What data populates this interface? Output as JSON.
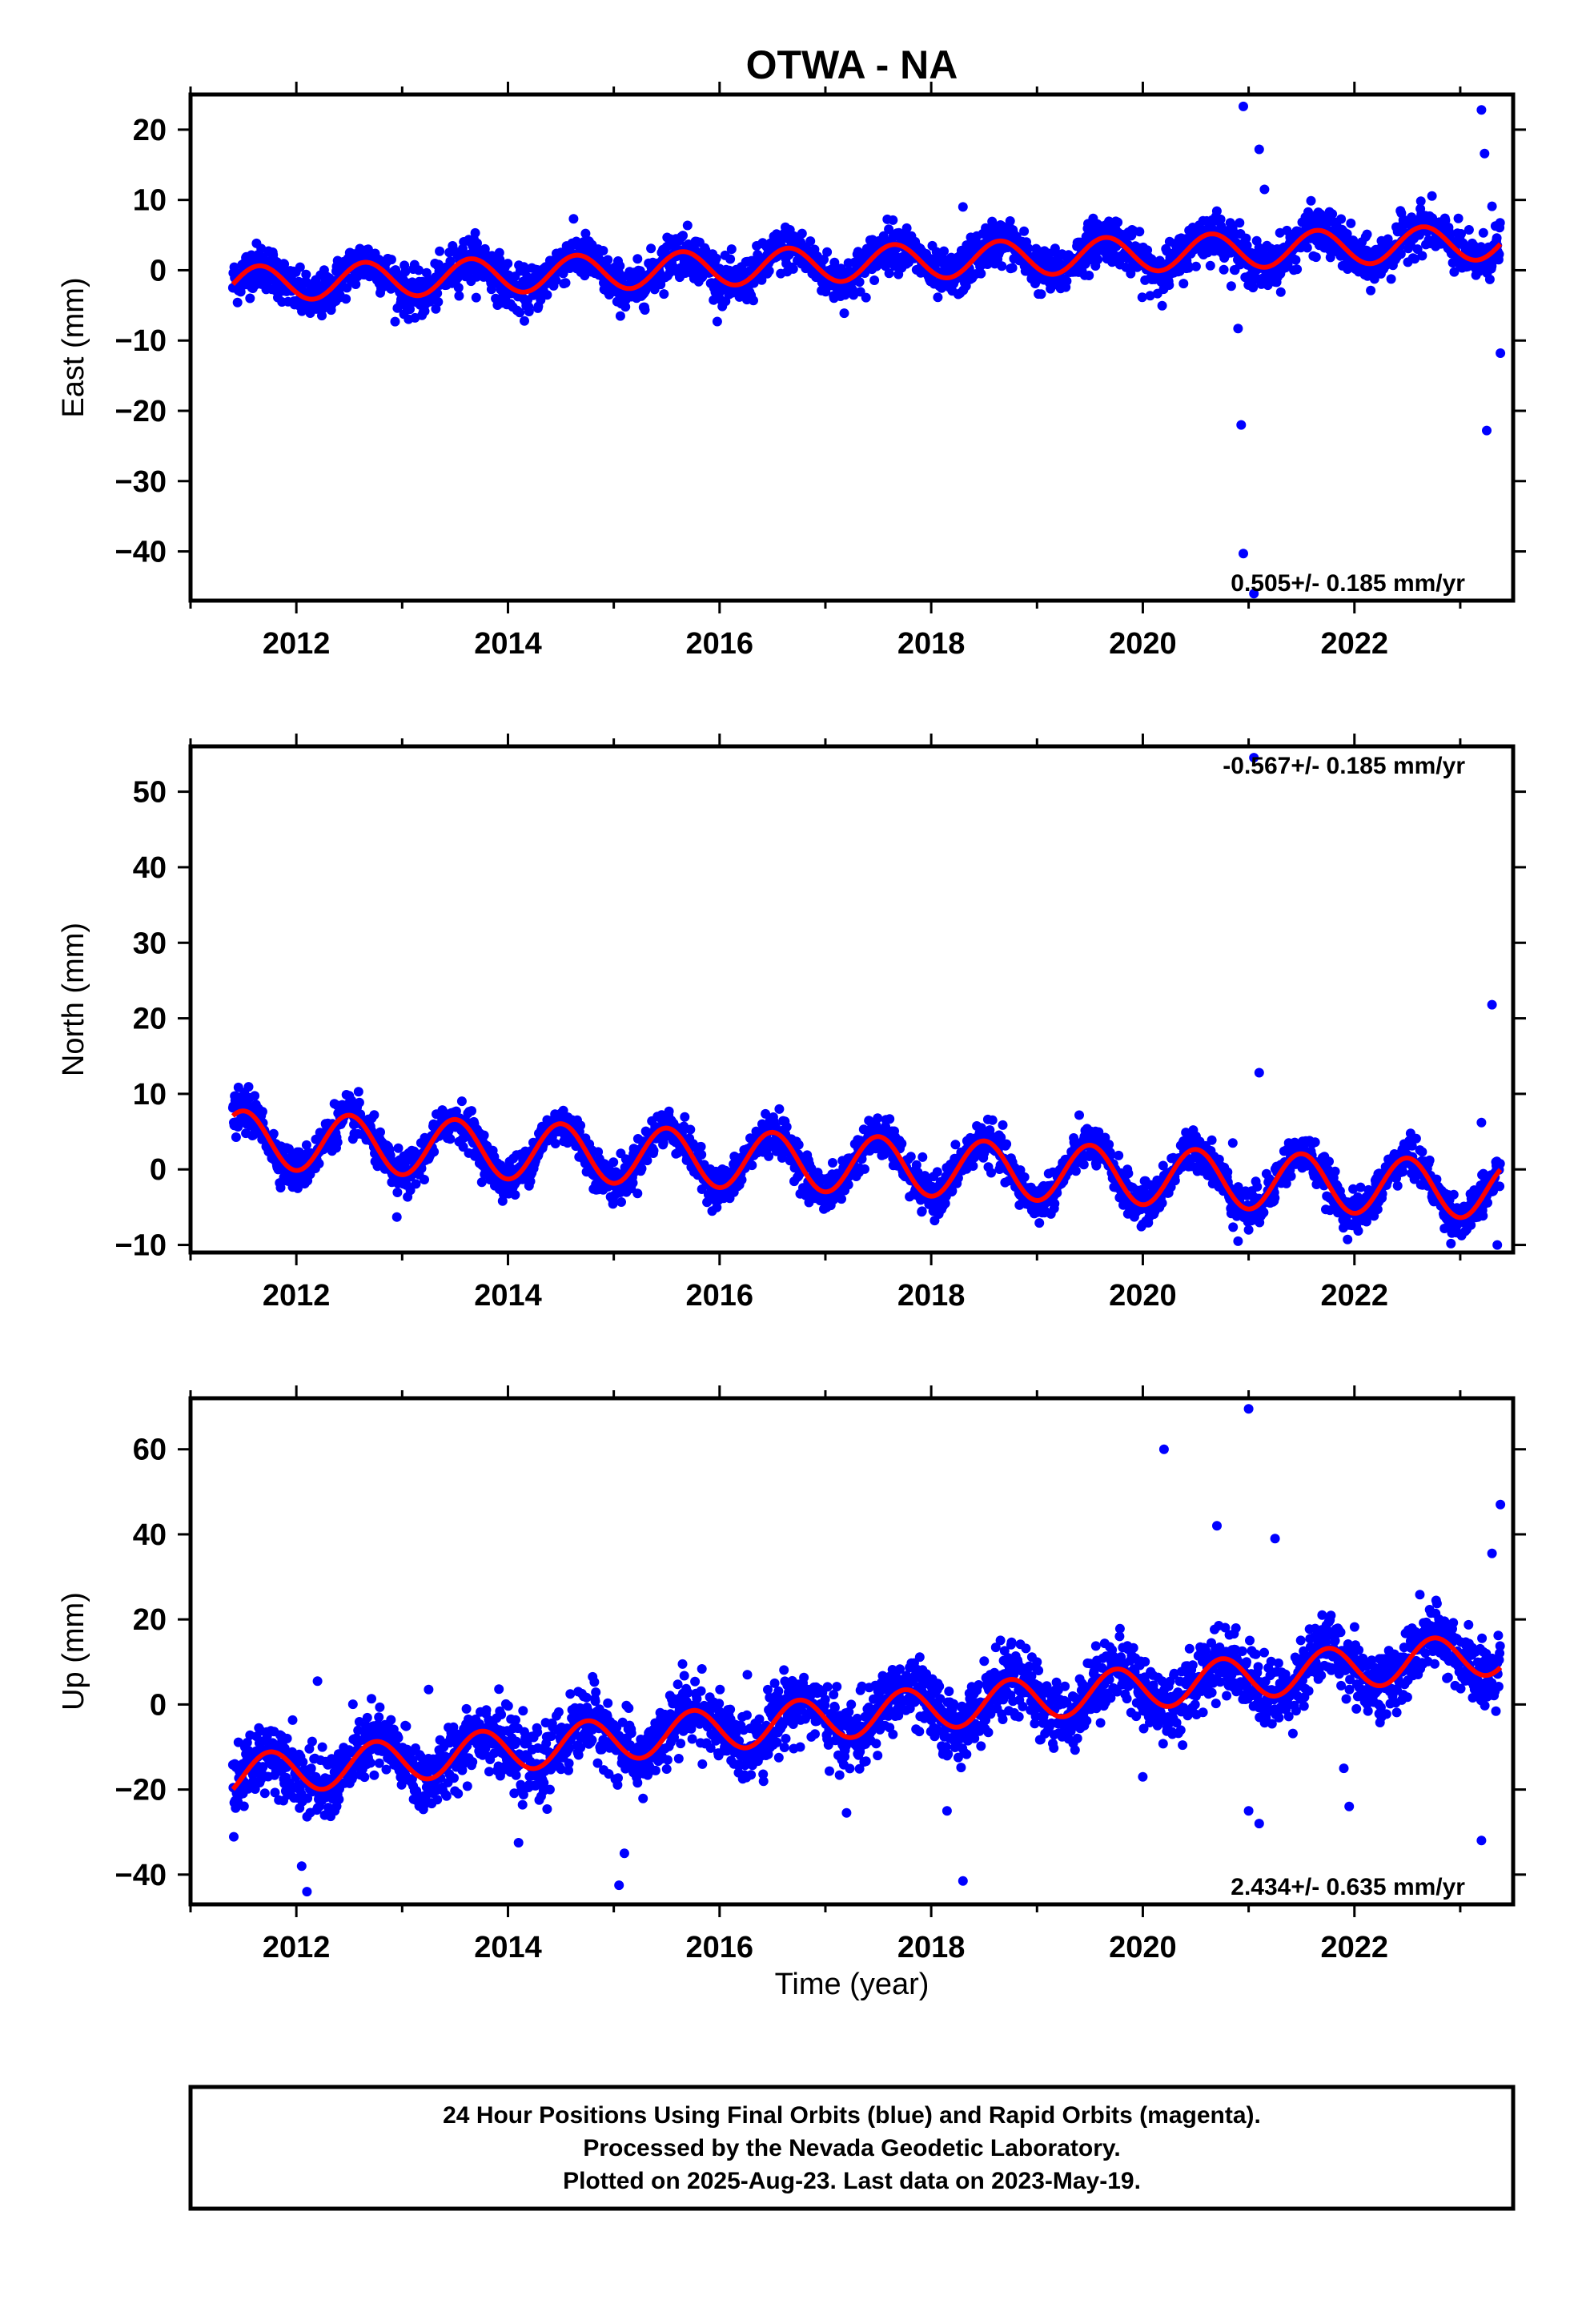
{
  "title": "OTWA - NA",
  "xlabel": "Time (year)",
  "caption": [
    "24 Hour Positions Using Final Orbits (blue) and Rapid Orbits (magenta).",
    "Processed by the Nevada Geodetic Laboratory.",
    "Plotted on 2025-Aug-23. Last data on 2023-May-19."
  ],
  "colors": {
    "observations": "#0000ff",
    "model": "#ff0000",
    "axes": "#000000"
  },
  "chart_data": [
    {
      "type": "scatter",
      "ylabel": "East (mm)",
      "rate_label": "0.505+/- 0.185 mm/yr",
      "xlim": [
        2011.0,
        2023.5
      ],
      "ylim": [
        -47,
        25
      ],
      "x_ticks": [
        2012,
        2014,
        2016,
        2018,
        2020,
        2022
      ],
      "y_ticks": [
        20,
        10,
        0,
        -10,
        -20,
        -30,
        -40
      ],
      "data_span": [
        2011.4,
        2023.38
      ],
      "fit": {
        "offset": -2.0,
        "rate": 0.505,
        "annual_amplitude": 2.5,
        "annual_peak": 2011.65
      },
      "scatter_sd": 1.6,
      "outliers": [
        [
          2020.95,
          23.3
        ],
        [
          2021.1,
          17.2
        ],
        [
          2021.15,
          11.5
        ],
        [
          2020.9,
          -8.3
        ],
        [
          2020.93,
          -22.0
        ],
        [
          2020.95,
          -40.3
        ],
        [
          2021.05,
          -46.0
        ],
        [
          2023.2,
          22.8
        ],
        [
          2023.23,
          16.6
        ],
        [
          2023.3,
          9.1
        ],
        [
          2023.25,
          -22.8
        ],
        [
          2023.38,
          -11.8
        ],
        [
          2018.3,
          9.0
        ]
      ],
      "series": [
        {
          "name": "Final Orbits (blue)",
          "kind": "points"
        },
        {
          "name": "",
          "kind": "model curve"
        }
      ]
    },
    {
      "type": "scatter",
      "ylabel": "North (mm)",
      "rate_label": "-0.567+/- 0.185 mm/yr",
      "xlim": [
        2011.0,
        2023.5
      ],
      "ylim": [
        -11,
        56
      ],
      "x_ticks": [
        2012,
        2014,
        2016,
        2018,
        2020,
        2022
      ],
      "y_ticks": [
        50,
        40,
        30,
        20,
        10,
        0,
        -10
      ],
      "data_span": [
        2011.4,
        2023.38
      ],
      "fit": {
        "offset": 4.0,
        "rate": -0.567,
        "annual_amplitude": 3.8,
        "annual_peak": 2011.5
      },
      "scatter_sd": 1.3,
      "outliers": [
        [
          2021.05,
          54.5
        ],
        [
          2023.3,
          21.8
        ],
        [
          2021.1,
          12.8
        ],
        [
          2020.85,
          3.5
        ],
        [
          2023.2,
          6.2
        ],
        [
          2012.95,
          -6.3
        ],
        [
          2020.9,
          -9.5
        ],
        [
          2023.35,
          -10.0
        ],
        [
          2021.0,
          -8.0
        ]
      ],
      "series": [
        {
          "name": "Final Orbits (blue)",
          "kind": "points"
        },
        {
          "name": "",
          "kind": "model curve"
        }
      ]
    },
    {
      "type": "scatter",
      "ylabel": "Up (mm)",
      "rate_label": "2.434+/- 0.635 mm/yr",
      "xlim": [
        2011.0,
        2023.5
      ],
      "ylim": [
        -47,
        72
      ],
      "x_ticks": [
        2012,
        2014,
        2016,
        2018,
        2020,
        2022
      ],
      "y_ticks": [
        60,
        40,
        20,
        0,
        -20,
        -40
      ],
      "data_span": [
        2011.4,
        2023.38
      ],
      "fit": {
        "offset": -17.0,
        "rate": 2.434,
        "annual_amplitude": 5.0,
        "annual_peak": 2011.75
      },
      "scatter_sd": 4.0,
      "outliers": [
        [
          2020.2,
          60.0
        ],
        [
          2021.0,
          69.5
        ],
        [
          2020.7,
          42.0
        ],
        [
          2021.25,
          39.0
        ],
        [
          2023.38,
          47.0
        ],
        [
          2023.3,
          35.5
        ],
        [
          2018.3,
          -41.5
        ],
        [
          2012.1,
          -44.0
        ],
        [
          2012.05,
          -38.0
        ],
        [
          2015.05,
          -42.5
        ],
        [
          2015.1,
          -35.0
        ],
        [
          2014.1,
          -32.5
        ],
        [
          2023.2,
          -32.0
        ],
        [
          2020.0,
          -17.0
        ],
        [
          2021.0,
          -25.0
        ],
        [
          2021.1,
          -28.0
        ],
        [
          2017.2,
          -25.5
        ],
        [
          2018.15,
          -25.0
        ],
        [
          2021.95,
          -24.0
        ],
        [
          2021.9,
          -15.0
        ],
        [
          2012.2,
          5.5
        ],
        [
          2014.8,
          6.5
        ],
        [
          2015.65,
          9.5
        ],
        [
          2013.25,
          3.5
        ]
      ],
      "series": [
        {
          "name": "Final Orbits (blue)",
          "kind": "points"
        },
        {
          "name": "",
          "kind": "model curve"
        }
      ]
    }
  ]
}
